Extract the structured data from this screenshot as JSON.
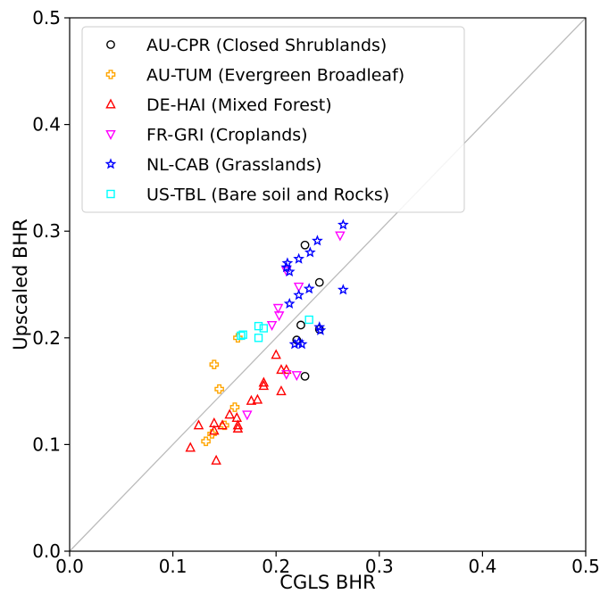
{
  "chart_data": {
    "type": "scatter",
    "xlabel": "CGLS BHR",
    "ylabel": "Upscaled BHR",
    "xlim": [
      0.0,
      0.5
    ],
    "ylim": [
      0.0,
      0.5
    ],
    "xticks": [
      "0.0",
      "0.1",
      "0.2",
      "0.3",
      "0.4",
      "0.5"
    ],
    "yticks": [
      "0.0",
      "0.1",
      "0.2",
      "0.3",
      "0.4",
      "0.5"
    ],
    "grid": false,
    "identity_line": true,
    "legend_position": "top-left",
    "series": [
      {
        "name": "AU-CPR (Closed Shrublands)",
        "marker": "circle",
        "color": "#000000",
        "points": [
          [
            0.228,
            0.287
          ],
          [
            0.242,
            0.252
          ],
          [
            0.224,
            0.212
          ],
          [
            0.22,
            0.198
          ],
          [
            0.242,
            0.208
          ],
          [
            0.228,
            0.164
          ]
        ]
      },
      {
        "name": "AU-TUM (Evergreen Broadleaf)",
        "marker": "plus",
        "color": "#FFA500",
        "points": [
          [
            0.163,
            0.2
          ],
          [
            0.14,
            0.175
          ],
          [
            0.145,
            0.152
          ],
          [
            0.16,
            0.135
          ],
          [
            0.15,
            0.118
          ],
          [
            0.138,
            0.11
          ],
          [
            0.132,
            0.103
          ]
        ]
      },
      {
        "name": "DE-HAI (Mixed Forest)",
        "marker": "triangle-up",
        "color": "#FF0000",
        "points": [
          [
            0.2,
            0.184
          ],
          [
            0.188,
            0.158
          ],
          [
            0.188,
            0.155
          ],
          [
            0.205,
            0.17
          ],
          [
            0.21,
            0.17
          ],
          [
            0.205,
            0.15
          ],
          [
            0.182,
            0.142
          ],
          [
            0.176,
            0.141
          ],
          [
            0.162,
            0.125
          ],
          [
            0.163,
            0.118
          ],
          [
            0.163,
            0.115
          ],
          [
            0.155,
            0.128
          ],
          [
            0.14,
            0.12
          ],
          [
            0.14,
            0.113
          ],
          [
            0.148,
            0.118
          ],
          [
            0.125,
            0.118
          ],
          [
            0.117,
            0.097
          ],
          [
            0.142,
            0.085
          ]
        ]
      },
      {
        "name": "FR-GRI (Croplands)",
        "marker": "triangle-down",
        "color": "#FF00FF",
        "points": [
          [
            0.262,
            0.296
          ],
          [
            0.21,
            0.263
          ],
          [
            0.222,
            0.248
          ],
          [
            0.202,
            0.228
          ],
          [
            0.203,
            0.221
          ],
          [
            0.196,
            0.212
          ],
          [
            0.21,
            0.166
          ],
          [
            0.22,
            0.165
          ],
          [
            0.172,
            0.128
          ]
        ]
      },
      {
        "name": "NL-CAB (Grasslands)",
        "marker": "star",
        "color": "#0000FF",
        "points": [
          [
            0.265,
            0.306
          ],
          [
            0.24,
            0.291
          ],
          [
            0.233,
            0.28
          ],
          [
            0.222,
            0.274
          ],
          [
            0.211,
            0.27
          ],
          [
            0.21,
            0.266
          ],
          [
            0.213,
            0.262
          ],
          [
            0.232,
            0.246
          ],
          [
            0.265,
            0.245
          ],
          [
            0.222,
            0.24
          ],
          [
            0.213,
            0.232
          ],
          [
            0.222,
            0.196
          ],
          [
            0.218,
            0.194
          ],
          [
            0.225,
            0.194
          ],
          [
            0.242,
            0.21
          ],
          [
            0.243,
            0.207
          ]
        ]
      },
      {
        "name": "US-TBL (Bare soil and Rocks)",
        "marker": "square",
        "color": "#00FFFF",
        "points": [
          [
            0.232,
            0.217
          ],
          [
            0.183,
            0.211
          ],
          [
            0.188,
            0.209
          ],
          [
            0.166,
            0.202
          ],
          [
            0.168,
            0.203
          ],
          [
            0.183,
            0.2
          ]
        ]
      }
    ]
  }
}
